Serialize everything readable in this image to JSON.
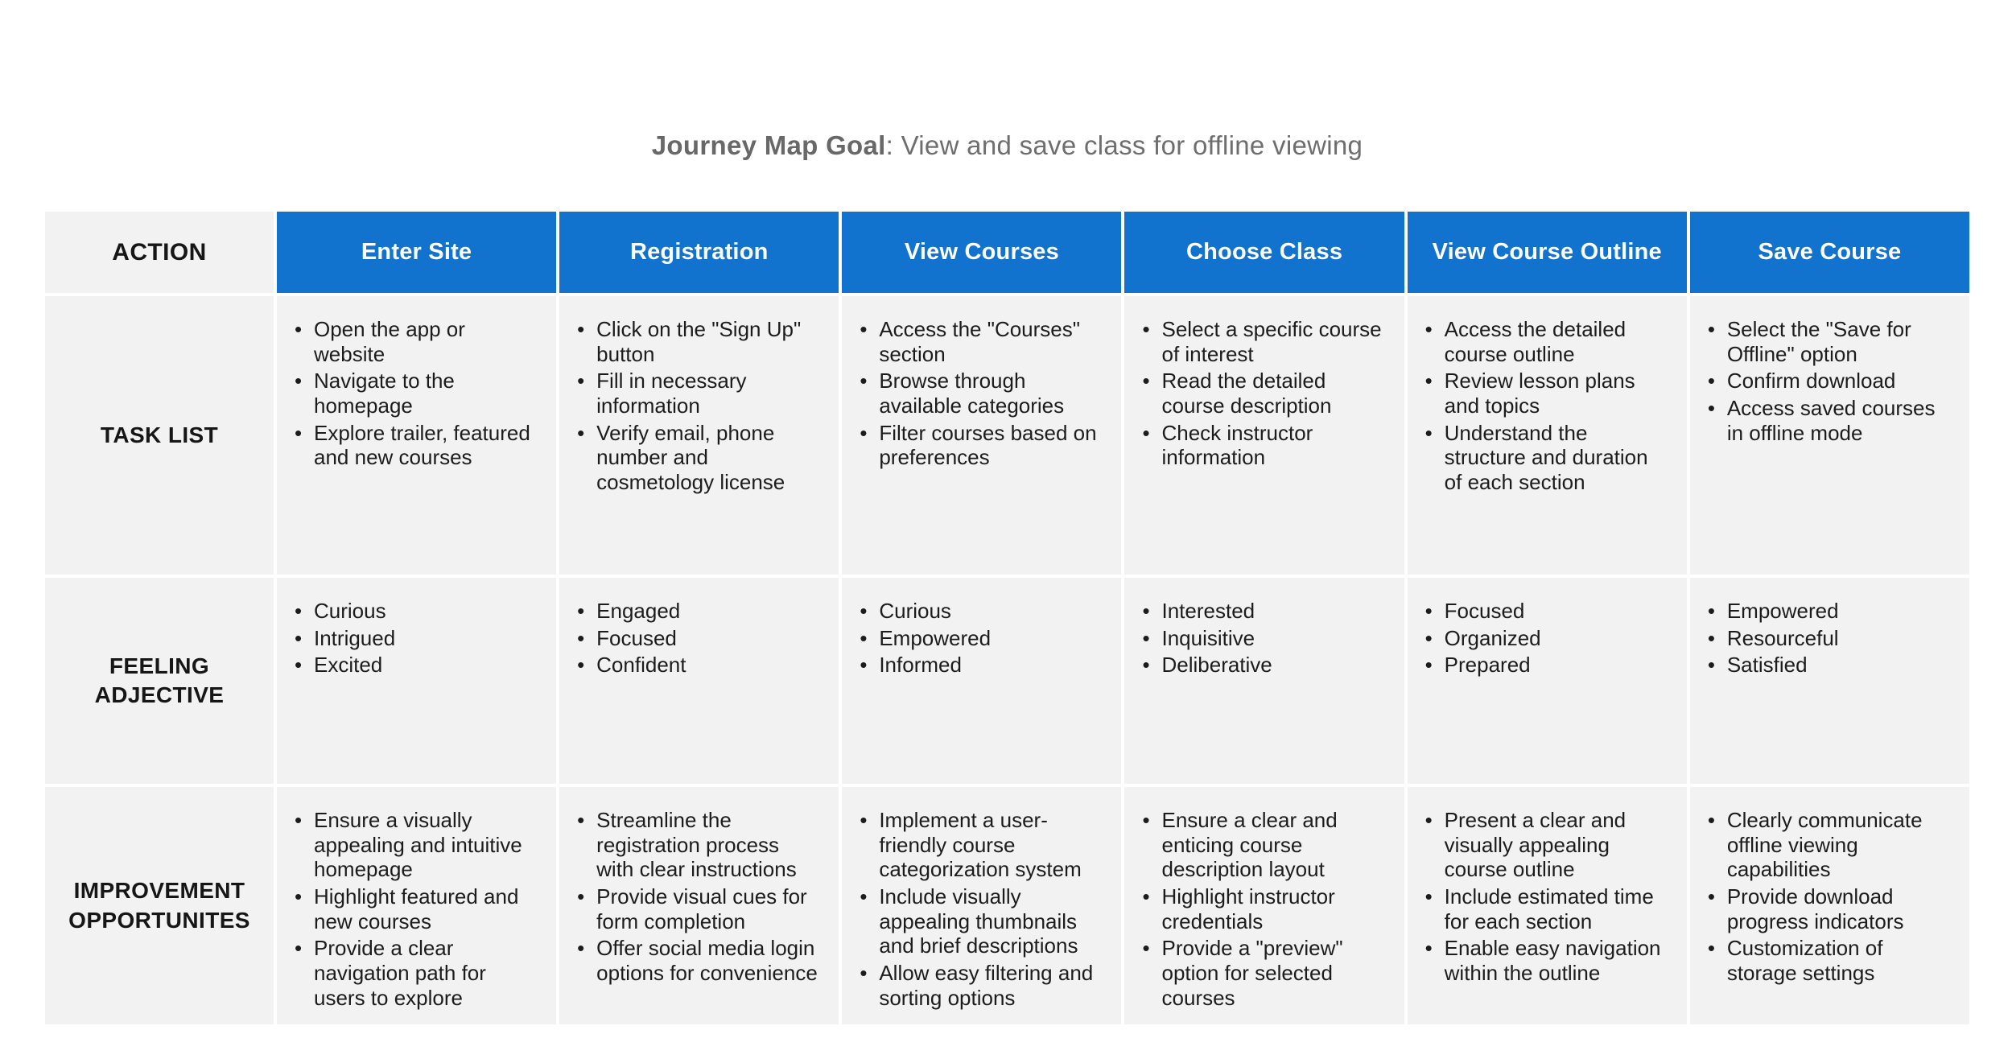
{
  "title": {
    "bold": "Journey Map Goal",
    "rest": ": View and save class for offline viewing"
  },
  "colors": {
    "header_blue": "#1173ce",
    "cell_gray": "#f2f2f2",
    "title_gray": "#6e6e6e",
    "text_dark": "#1c1c1c"
  },
  "table": {
    "corner_label": "ACTION",
    "row_labels": {
      "tasks": "TASK LIST",
      "feelings": "FEELING ADJECTIVE",
      "improvements": "IMPROVEMENT OPPORTUNITES"
    },
    "columns": [
      {
        "header": "Enter Site",
        "tasks": [
          "Open the app or website",
          "Navigate to the homepage",
          "Explore trailer, featured and new courses"
        ],
        "feelings": [
          "Curious",
          "Intrigued",
          "Excited"
        ],
        "improvements": [
          "Ensure a visually appealing and intuitive homepage",
          "Highlight featured and new courses",
          "Provide a clear navigation path for users to explore"
        ]
      },
      {
        "header": "Registration",
        "tasks": [
          "Click on the \"Sign Up\" button",
          "Fill in necessary information",
          "Verify email, phone number and cosmetology license"
        ],
        "feelings": [
          "Engaged",
          "Focused",
          "Confident"
        ],
        "improvements": [
          "Streamline the registration process with clear instructions",
          "Provide visual cues for form completion",
          "Offer social media login options for convenience"
        ]
      },
      {
        "header": "View Courses",
        "tasks": [
          "Access the \"Courses\" section",
          "Browse through available categories",
          "Filter courses based on preferences"
        ],
        "feelings": [
          "Curious",
          "Empowered",
          "Informed"
        ],
        "improvements": [
          "Implement a user-friendly course categorization system",
          "Include visually appealing thumbnails and brief descriptions",
          "Allow easy filtering and sorting options"
        ]
      },
      {
        "header": "Choose Class",
        "tasks": [
          "Select a specific course of interest",
          "Read the detailed course description",
          "Check instructor information"
        ],
        "feelings": [
          "Interested",
          "Inquisitive",
          "Deliberative"
        ],
        "improvements": [
          "Ensure a clear and enticing course description layout",
          "Highlight instructor credentials",
          "Provide a \"preview\" option for selected courses"
        ]
      },
      {
        "header": "View Course Outline",
        "tasks": [
          "Access the detailed course outline",
          "Review lesson plans and topics",
          "Understand the structure and duration of each section"
        ],
        "feelings": [
          "Focused",
          "Organized",
          "Prepared"
        ],
        "improvements": [
          "Present a clear and visually appealing course outline",
          "Include estimated time for each section",
          "Enable easy navigation within the outline"
        ]
      },
      {
        "header": "Save Course",
        "tasks": [
          "Select the \"Save for Offline\" option",
          "Confirm download",
          "Access saved courses in offline mode"
        ],
        "feelings": [
          "Empowered",
          "Resourceful",
          "Satisfied"
        ],
        "improvements": [
          "Clearly communicate offline viewing capabilities",
          "Provide download progress indicators",
          "Customization of storage settings"
        ]
      }
    ]
  }
}
